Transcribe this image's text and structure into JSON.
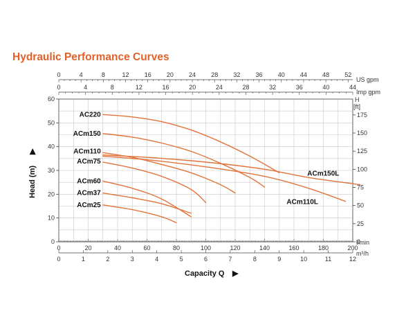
{
  "title": "Hydraulic Performance Curves",
  "colors": {
    "curve": "#e2733a",
    "title": "#e2602a",
    "grid": "#c8c8c8",
    "axis": "#444444"
  },
  "chart_data": {
    "type": "line",
    "title": "Hydraulic Performance Curves",
    "xlabel": "Capacity Q",
    "ylabel": "Head (m)",
    "x_unit": "l/min",
    "xlim": [
      0,
      200
    ],
    "ylim": [
      0,
      60
    ],
    "grid": true,
    "axes": {
      "x_lmin": {
        "unit": "l/min",
        "ticks": [
          0,
          20,
          40,
          60,
          80,
          100,
          120,
          140,
          160,
          180,
          200
        ]
      },
      "x_m3h": {
        "unit": "m³/h",
        "ticks": [
          0,
          1,
          2,
          3,
          4,
          5,
          6,
          7,
          8,
          9,
          10,
          11,
          12
        ]
      },
      "x_usgpm": {
        "unit": "US gpm",
        "ticks": [
          0,
          4,
          8,
          12,
          16,
          20,
          24,
          28,
          32,
          36,
          40,
          44,
          48,
          52
        ]
      },
      "x_impgpm": {
        "unit": "Imp gpm",
        "ticks": [
          0,
          4,
          8,
          12,
          16,
          20,
          24,
          28,
          32,
          36,
          40,
          44
        ]
      },
      "y_m": {
        "label": "Head (m)",
        "ticks": [
          0,
          10,
          20,
          30,
          40,
          50,
          60
        ]
      },
      "y_ft": {
        "unit_line1": "H",
        "unit_line2": "[ft]",
        "ticks": [
          0,
          25,
          50,
          75,
          100,
          125,
          150,
          175
        ]
      }
    },
    "series": [
      {
        "name": "AC220",
        "x": [
          30,
          50,
          70,
          90,
          110,
          130,
          150
        ],
        "y": [
          53.5,
          52.5,
          50.5,
          47,
          42,
          36,
          29
        ]
      },
      {
        "name": "ACm150",
        "x": [
          30,
          50,
          70,
          90,
          110,
          130,
          140
        ],
        "y": [
          45.5,
          44,
          41.5,
          38,
          33,
          27,
          23
        ]
      },
      {
        "name": "ACm110",
        "x": [
          30,
          50,
          70,
          90,
          110,
          120
        ],
        "y": [
          37.5,
          35.5,
          32.5,
          29,
          24,
          20.5
        ]
      },
      {
        "name": "ACm75",
        "x": [
          30,
          50,
          70,
          90,
          100
        ],
        "y": [
          33.5,
          31,
          27.5,
          22,
          16.5
        ]
      },
      {
        "name": "ACm60",
        "x": [
          30,
          50,
          70,
          90
        ],
        "y": [
          25.5,
          22.5,
          18,
          10.5
        ]
      },
      {
        "name": "ACm37",
        "x": [
          30,
          50,
          70,
          90
        ],
        "y": [
          20.5,
          18.5,
          16,
          12
        ]
      },
      {
        "name": "ACm25",
        "x": [
          30,
          50,
          70,
          80
        ],
        "y": [
          15.5,
          13.5,
          10.5,
          8
        ]
      },
      {
        "name": "ACm150L",
        "x": [
          30,
          60,
          100,
          140,
          170,
          205
        ],
        "y": [
          36.5,
          35.5,
          33.5,
          30.5,
          27,
          24
        ]
      },
      {
        "name": "ACm110L",
        "x": [
          30,
          60,
          100,
          140,
          170,
          195
        ],
        "y": [
          36,
          34.5,
          31.5,
          27.5,
          22.5,
          17
        ]
      }
    ]
  }
}
